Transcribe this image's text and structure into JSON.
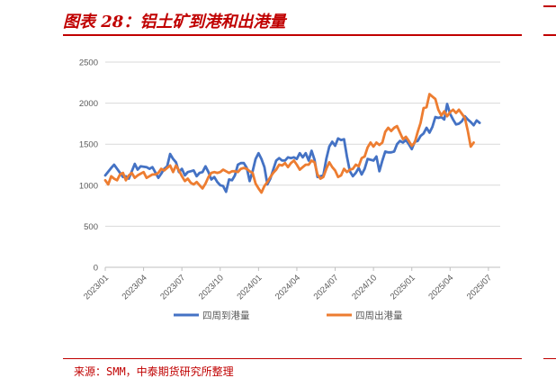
{
  "header": {
    "title": "图表 28：铝土矿到港和出港量"
  },
  "footer": {
    "source": "来源：SMM，中泰期货研究所整理"
  },
  "chart_data": {
    "type": "line",
    "title": "图表 28：铝土矿到港和出港量",
    "xlabel": "",
    "ylabel": "",
    "ylim": [
      0,
      2500
    ],
    "yticks": [
      0,
      500,
      1000,
      1500,
      2000,
      2500
    ],
    "grid": true,
    "legend_position": "bottom",
    "x_tick_labels": [
      "2023/01",
      "2023/04",
      "2023/07",
      "2023/10",
      "2024/01",
      "2024/04",
      "2024/07",
      "2024/10",
      "2025/01",
      "2025/04",
      "2025/07"
    ],
    "x_range_weeks": [
      0,
      134
    ],
    "series": [
      {
        "name": "四周到港量",
        "color": "#4472c4",
        "points": [
          [
            0,
            1120
          ],
          [
            2,
            1210
          ],
          [
            3,
            1250
          ],
          [
            5,
            1150
          ],
          [
            6,
            1100
          ],
          [
            7,
            1110
          ],
          [
            8,
            1080
          ],
          [
            10,
            1260
          ],
          [
            11,
            1190
          ],
          [
            12,
            1230
          ],
          [
            14,
            1220
          ],
          [
            15,
            1200
          ],
          [
            16,
            1220
          ],
          [
            18,
            1090
          ],
          [
            19,
            1140
          ],
          [
            20,
            1200
          ],
          [
            21,
            1230
          ],
          [
            22,
            1380
          ],
          [
            23,
            1320
          ],
          [
            24,
            1280
          ],
          [
            25,
            1160
          ],
          [
            26,
            1200
          ],
          [
            27,
            1120
          ],
          [
            28,
            1160
          ],
          [
            29,
            1170
          ],
          [
            30,
            1180
          ],
          [
            31,
            1110
          ],
          [
            32,
            1150
          ],
          [
            33,
            1160
          ],
          [
            34,
            1230
          ],
          [
            35,
            1160
          ],
          [
            36,
            1070
          ],
          [
            37,
            1100
          ],
          [
            38,
            1040
          ],
          [
            39,
            1000
          ],
          [
            40,
            990
          ],
          [
            41,
            920
          ],
          [
            42,
            1070
          ],
          [
            43,
            1060
          ],
          [
            44,
            1120
          ],
          [
            45,
            1250
          ],
          [
            46,
            1270
          ],
          [
            47,
            1270
          ],
          [
            48,
            1210
          ],
          [
            49,
            1050
          ],
          [
            50,
            1170
          ],
          [
            51,
            1320
          ],
          [
            52,
            1390
          ],
          [
            53,
            1320
          ],
          [
            54,
            1220
          ],
          [
            55,
            1010
          ],
          [
            56,
            1080
          ],
          [
            57,
            1190
          ],
          [
            58,
            1300
          ],
          [
            59,
            1330
          ],
          [
            60,
            1300
          ],
          [
            61,
            1300
          ],
          [
            62,
            1340
          ],
          [
            63,
            1330
          ],
          [
            64,
            1340
          ],
          [
            65,
            1320
          ],
          [
            66,
            1390
          ],
          [
            67,
            1340
          ],
          [
            68,
            1390
          ],
          [
            69,
            1300
          ],
          [
            70,
            1420
          ],
          [
            71,
            1310
          ],
          [
            72,
            1100
          ],
          [
            73,
            1110
          ],
          [
            74,
            1120
          ],
          [
            75,
            1320
          ],
          [
            76,
            1470
          ],
          [
            77,
            1530
          ],
          [
            78,
            1480
          ],
          [
            79,
            1570
          ],
          [
            80,
            1550
          ],
          [
            81,
            1560
          ],
          [
            82,
            1350
          ],
          [
            83,
            1170
          ],
          [
            84,
            1110
          ],
          [
            85,
            1150
          ],
          [
            86,
            1210
          ],
          [
            87,
            1130
          ],
          [
            88,
            1200
          ],
          [
            89,
            1320
          ],
          [
            90,
            1310
          ],
          [
            91,
            1300
          ],
          [
            92,
            1350
          ],
          [
            93,
            1170
          ],
          [
            94,
            1300
          ],
          [
            95,
            1410
          ],
          [
            96,
            1400
          ],
          [
            97,
            1400
          ],
          [
            98,
            1410
          ],
          [
            99,
            1500
          ],
          [
            100,
            1540
          ],
          [
            101,
            1520
          ],
          [
            102,
            1550
          ],
          [
            103,
            1500
          ],
          [
            104,
            1440
          ],
          [
            105,
            1530
          ],
          [
            106,
            1540
          ],
          [
            107,
            1600
          ],
          [
            108,
            1630
          ],
          [
            109,
            1700
          ],
          [
            110,
            1640
          ],
          [
            111,
            1710
          ],
          [
            112,
            1830
          ],
          [
            113,
            1820
          ],
          [
            114,
            1830
          ],
          [
            115,
            1800
          ],
          [
            116,
            1990
          ],
          [
            117,
            1870
          ],
          [
            118,
            1800
          ],
          [
            119,
            1740
          ],
          [
            120,
            1750
          ],
          [
            121,
            1780
          ],
          [
            122,
            1840
          ],
          [
            123,
            1800
          ],
          [
            124,
            1770
          ],
          [
            125,
            1730
          ],
          [
            126,
            1790
          ],
          [
            127,
            1760
          ]
        ]
      },
      {
        "name": "四周出港量",
        "color": "#ed7d31",
        "points": [
          [
            0,
            1060
          ],
          [
            1,
            1010
          ],
          [
            2,
            1110
          ],
          [
            3,
            1080
          ],
          [
            4,
            1060
          ],
          [
            5,
            1130
          ],
          [
            6,
            1150
          ],
          [
            7,
            1060
          ],
          [
            8,
            1120
          ],
          [
            9,
            1150
          ],
          [
            10,
            1090
          ],
          [
            11,
            1120
          ],
          [
            12,
            1140
          ],
          [
            13,
            1160
          ],
          [
            14,
            1090
          ],
          [
            15,
            1110
          ],
          [
            16,
            1130
          ],
          [
            17,
            1130
          ],
          [
            18,
            1150
          ],
          [
            19,
            1200
          ],
          [
            20,
            1180
          ],
          [
            21,
            1210
          ],
          [
            22,
            1240
          ],
          [
            23,
            1160
          ],
          [
            24,
            1240
          ],
          [
            25,
            1180
          ],
          [
            26,
            1110
          ],
          [
            27,
            1050
          ],
          [
            28,
            1080
          ],
          [
            29,
            1030
          ],
          [
            30,
            1010
          ],
          [
            31,
            1040
          ],
          [
            32,
            1000
          ],
          [
            33,
            960
          ],
          [
            34,
            1020
          ],
          [
            35,
            1100
          ],
          [
            36,
            1150
          ],
          [
            37,
            1160
          ],
          [
            38,
            1150
          ],
          [
            39,
            1160
          ],
          [
            40,
            1190
          ],
          [
            41,
            1170
          ],
          [
            42,
            1150
          ],
          [
            43,
            1170
          ],
          [
            44,
            1170
          ],
          [
            45,
            1160
          ],
          [
            46,
            1200
          ],
          [
            47,
            1210
          ],
          [
            48,
            1200
          ],
          [
            49,
            1170
          ],
          [
            50,
            1150
          ],
          [
            51,
            1020
          ],
          [
            52,
            960
          ],
          [
            53,
            910
          ],
          [
            54,
            990
          ],
          [
            55,
            1040
          ],
          [
            56,
            1100
          ],
          [
            57,
            1150
          ],
          [
            58,
            1190
          ],
          [
            59,
            1250
          ],
          [
            60,
            1240
          ],
          [
            61,
            1270
          ],
          [
            62,
            1220
          ],
          [
            63,
            1270
          ],
          [
            64,
            1300
          ],
          [
            65,
            1250
          ],
          [
            66,
            1190
          ],
          [
            67,
            1220
          ],
          [
            68,
            1250
          ],
          [
            69,
            1250
          ],
          [
            70,
            1300
          ],
          [
            71,
            1280
          ],
          [
            72,
            1130
          ],
          [
            73,
            1080
          ],
          [
            74,
            1100
          ],
          [
            75,
            1200
          ],
          [
            76,
            1280
          ],
          [
            77,
            1220
          ],
          [
            78,
            1180
          ],
          [
            79,
            1100
          ],
          [
            80,
            1120
          ],
          [
            81,
            1200
          ],
          [
            82,
            1160
          ],
          [
            83,
            1190
          ],
          [
            84,
            1200
          ],
          [
            85,
            1250
          ],
          [
            86,
            1230
          ],
          [
            87,
            1330
          ],
          [
            88,
            1350
          ],
          [
            89,
            1460
          ],
          [
            90,
            1520
          ],
          [
            91,
            1470
          ],
          [
            92,
            1520
          ],
          [
            93,
            1490
          ],
          [
            94,
            1520
          ],
          [
            95,
            1650
          ],
          [
            96,
            1700
          ],
          [
            97,
            1660
          ],
          [
            98,
            1700
          ],
          [
            99,
            1720
          ],
          [
            100,
            1640
          ],
          [
            101,
            1560
          ],
          [
            102,
            1590
          ],
          [
            103,
            1540
          ],
          [
            104,
            1480
          ],
          [
            105,
            1520
          ],
          [
            106,
            1650
          ],
          [
            107,
            1760
          ],
          [
            108,
            1940
          ],
          [
            109,
            1950
          ],
          [
            110,
            2110
          ],
          [
            111,
            2080
          ],
          [
            112,
            2050
          ],
          [
            113,
            1920
          ],
          [
            114,
            1850
          ],
          [
            115,
            1900
          ],
          [
            116,
            1840
          ],
          [
            117,
            1890
          ],
          [
            118,
            1920
          ],
          [
            119,
            1880
          ],
          [
            120,
            1920
          ],
          [
            121,
            1870
          ],
          [
            122,
            1820
          ],
          [
            123,
            1660
          ],
          [
            124,
            1470
          ],
          [
            125,
            1520
          ]
        ]
      }
    ]
  }
}
